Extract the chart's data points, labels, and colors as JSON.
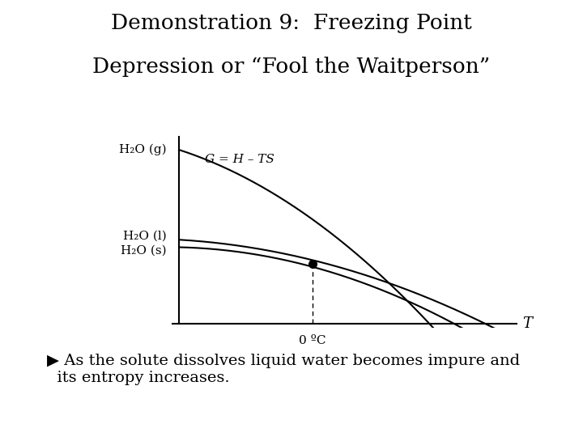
{
  "title_line1": "Demonstration 9:  Freezing Point",
  "title_line2": "Depression or “Fool the Waitperson”",
  "equation_label": "G = H – TS",
  "label_gas": "H₂O (g)",
  "label_liquid": "H₂O (l)",
  "label_solid": "H₂O (s)",
  "xlabel": "T",
  "zero_label": "0 ºC",
  "footer_arrow": "▶",
  "footer_text": " As the solute dissolves liquid water becomes impure and\nits entropy increases.",
  "bg_color": "#ffffff",
  "curve_color": "#000000",
  "title_fontsize": 19,
  "body_fontsize": 14,
  "label_fontsize": 11,
  "eq_fontsize": 11
}
